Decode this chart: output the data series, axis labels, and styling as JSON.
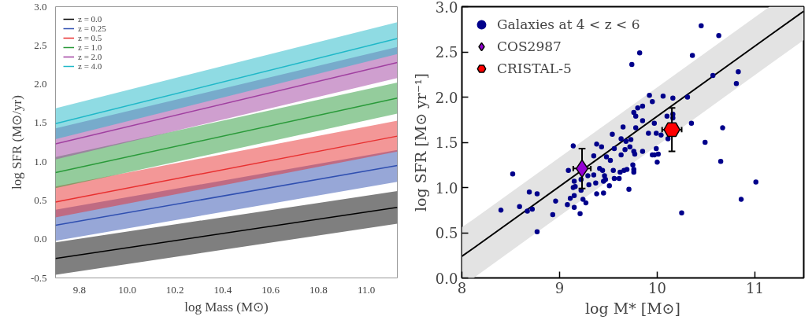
{
  "chart_data": [
    {
      "type": "line",
      "xlabel": "log Mass (M⊙)",
      "ylabel": "log SFR (M⊙/yr)",
      "xlim": [
        9.7,
        11.13
      ],
      "ylim": [
        -0.5,
        3.0
      ],
      "xticks": [
        9.8,
        {
          "value": 10.0,
          "label": "10.0"
        },
        10.2,
        10.4,
        10.6,
        10.8,
        {
          "value": 11.0,
          "label": "11.0"
        }
      ],
      "yticks": [
        -0.5,
        {
          "value": 0.0,
          "label": "0.0"
        },
        0.5,
        {
          "value": 1.0,
          "label": "1.0"
        },
        1.5,
        {
          "value": 2.0,
          "label": "2.0"
        },
        2.5,
        {
          "value": 3.0,
          "label": "3.0"
        }
      ],
      "grid": false,
      "legend": "top left",
      "marker": "none",
      "line_style": "solid",
      "series": [
        {
          "name": "z = 0.0",
          "color": "#000000",
          "x": [
            9.7,
            11.13
          ],
          "values": [
            -0.25,
            0.41
          ],
          "lower": [
            -0.46,
            0.2
          ],
          "upper": [
            -0.04,
            0.62
          ]
        },
        {
          "name": "z = 0.25",
          "color": "#2f4fb0",
          "x": [
            9.7,
            11.13
          ],
          "values": [
            0.18,
            0.95
          ],
          "lower": [
            -0.02,
            0.74
          ],
          "upper": [
            0.38,
            1.15
          ]
        },
        {
          "name": "z = 0.5",
          "color": "#e83030",
          "x": [
            9.7,
            11.13
          ],
          "values": [
            0.48,
            1.33
          ],
          "lower": [
            0.28,
            1.13
          ],
          "upper": [
            0.68,
            1.53
          ]
        },
        {
          "name": "z = 1.0",
          "color": "#2a9a3a",
          "x": [
            9.7,
            11.13
          ],
          "values": [
            0.86,
            1.82
          ],
          "lower": [
            0.66,
            1.62
          ],
          "upper": [
            1.06,
            2.02
          ]
        },
        {
          "name": "z = 2.0",
          "color": "#a040a0",
          "x": [
            9.7,
            11.13
          ],
          "values": [
            1.23,
            2.28
          ],
          "lower": [
            1.03,
            2.08
          ],
          "upper": [
            1.43,
            2.48
          ]
        },
        {
          "name": "z = 4.0",
          "color": "#20b8c8",
          "x": [
            9.7,
            11.13
          ],
          "values": [
            1.49,
            2.59
          ],
          "lower": [
            1.29,
            2.39
          ],
          "upper": [
            1.69,
            2.8
          ]
        }
      ]
    },
    {
      "type": "scatter",
      "xlabel": "log M* [M⊙]",
      "ylabel": "log SFR [M⊙ yr⁻¹]",
      "xlim": [
        8,
        11.5
      ],
      "ylim": [
        0,
        3.0
      ],
      "xticks": [
        8,
        9,
        10,
        11
      ],
      "yticks": [
        {
          "value": 0.0,
          "label": "0.0"
        },
        0.5,
        {
          "value": 1.0,
          "label": "1.0"
        },
        1.5,
        {
          "value": 2.0,
          "label": "2.0"
        },
        2.5,
        {
          "value": 3.0,
          "label": "3.0"
        }
      ],
      "grid": false,
      "legend": "top left",
      "series": [
        {
          "type": "line",
          "color": "#000000",
          "x": [
            8,
            8.12,
            11.15,
            11.5
          ],
          "values": [
            0.24,
            0.33,
            2.68,
            2.95
          ],
          "lower": [
            0.0,
            0.0,
            2.36,
            2.63
          ],
          "upper": [
            0.56,
            0.65,
            3.0,
            3.0
          ]
        },
        {
          "name": "Galaxies at 4 < z < 6",
          "color": "#00008b",
          "marker": "circle",
          "x": [
            8.4,
            8.52,
            8.59,
            8.67,
            8.69,
            8.72,
            8.77,
            8.77,
            8.93,
            8.96,
            9.08,
            9.09,
            9.11,
            9.14,
            9.15,
            9.15,
            9.14,
            9.16,
            9.15,
            9.21,
            9.22,
            9.22,
            9.24,
            9.27,
            9.29,
            9.3,
            9.35,
            9.35,
            9.37,
            9.38,
            9.38,
            9.41,
            9.43,
            9.44,
            9.45,
            9.45,
            9.46,
            9.47,
            9.48,
            9.51,
            9.52,
            9.54,
            9.55,
            9.56,
            9.56,
            9.61,
            9.62,
            9.63,
            9.63,
            9.65,
            9.66,
            9.67,
            9.68,
            9.69,
            9.71,
            9.72,
            9.73,
            9.74,
            9.75,
            9.76,
            9.76,
            9.76,
            9.76,
            9.77,
            9.78,
            9.78,
            9.8,
            9.82,
            9.85,
            9.85,
            9.85,
            9.91,
            9.92,
            9.95,
            9.95,
            9.97,
            9.97,
            9.99,
            9.99,
            10.0,
            10.01,
            10.06,
            10.04,
            10.1,
            10.11,
            10.16,
            10.16,
            10.16,
            10.25,
            10.31,
            10.35,
            10.36,
            10.45,
            10.49,
            10.57,
            10.63,
            10.65,
            10.67,
            10.81,
            10.83,
            10.86,
            11.01
          ],
          "values": [
            0.75,
            1.15,
            0.79,
            0.74,
            0.95,
            0.76,
            0.93,
            0.51,
            0.7,
            0.85,
            0.81,
            1.19,
            0.88,
            1.46,
            0.78,
            1.07,
            1.0,
            1.01,
            0.91,
            0.71,
            0.97,
            1.09,
            0.87,
            0.83,
            1.13,
            1.03,
            1.35,
            1.14,
            1.05,
            0.93,
            1.48,
            1.21,
            1.45,
            1.19,
            0.94,
            1.07,
            1.13,
            1.09,
            1.34,
            1.02,
            1.3,
            1.59,
            1.19,
            1.1,
            1.43,
            1.1,
            1.17,
            1.54,
            1.36,
            1.67,
            1.19,
            1.42,
            1.51,
            1.2,
            0.98,
            1.45,
            1.53,
            2.36,
            1.25,
            1.17,
            1.2,
            1.83,
            1.4,
            1.37,
            1.79,
            1.66,
            1.88,
            2.49,
            1.9,
            1.74,
            1.4,
            1.6,
            2.02,
            1.95,
            1.36,
            1.36,
            1.71,
            1.6,
            1.43,
            1.28,
            1.37,
            2.01,
            1.58,
            1.79,
            1.54,
            1.99,
            1.81,
            1.77,
            0.72,
            2.0,
            1.71,
            2.46,
            2.79,
            1.5,
            2.24,
            2.68,
            1.29,
            1.66,
            2.15,
            2.28,
            0.87,
            1.06
          ]
        },
        {
          "name": "COS2987",
          "color": "#9400d3",
          "marker": "diamond",
          "x": [
            9.23
          ],
          "values": [
            1.21
          ],
          "errors": [
            0.22
          ],
          "xerrors": [
            0.09
          ]
        },
        {
          "name": "CRISTAL-5",
          "color": "#ff0000",
          "x": [
            10.15
          ],
          "values": [
            1.64
          ],
          "errors": [
            0.24
          ],
          "xerrors": [
            0.1
          ]
        }
      ]
    }
  ]
}
